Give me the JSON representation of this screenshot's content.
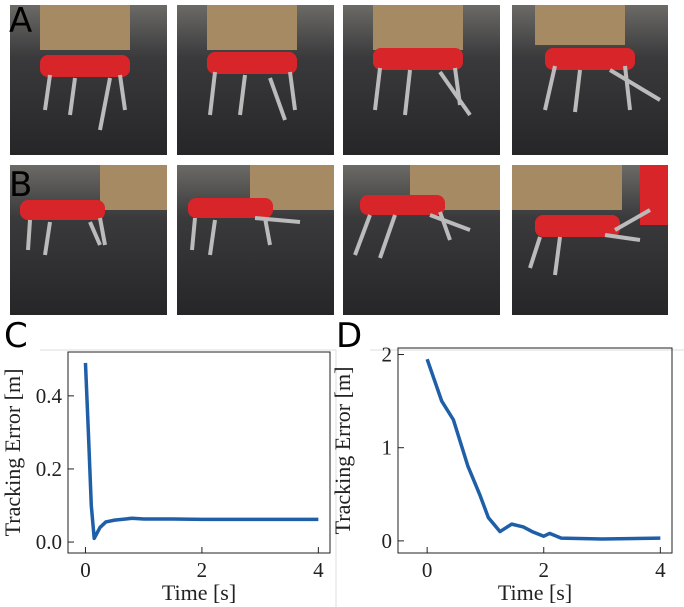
{
  "panel_labels": [
    "A",
    "B",
    "C",
    "D"
  ],
  "chart_data": [
    {
      "type": "line",
      "xlabel": "Time [s]",
      "ylabel": "Tracking Error [m]",
      "x": [
        0,
        0.05,
        0.1,
        0.15,
        0.25,
        0.35,
        0.5,
        0.8,
        1.0,
        1.5,
        2.0,
        3.0,
        4.0
      ],
      "series": [
        {
          "color": "#1f5fa8",
          "values": [
            0.49,
            0.3,
            0.1,
            0.01,
            0.04,
            0.055,
            0.06,
            0.065,
            0.063,
            0.063,
            0.062,
            0.062,
            0.062
          ]
        }
      ],
      "xlim": [
        -0.3,
        4.2
      ],
      "ylim": [
        -0.03,
        0.52
      ],
      "xticks": [
        0,
        2,
        4
      ],
      "yticks": [
        {
          "value": 0,
          "label": "0.0"
        },
        0.2,
        0.4
      ]
    },
    {
      "type": "line",
      "xlabel": "Time [s]",
      "ylabel": "Tracking Error [m]",
      "x": [
        0,
        0.25,
        0.45,
        0.7,
        0.9,
        1.05,
        1.25,
        1.45,
        1.65,
        1.8,
        2.0,
        2.1,
        2.3,
        3.0,
        4.0
      ],
      "series": [
        {
          "color": "#1f5fa8",
          "values": [
            1.95,
            1.5,
            1.3,
            0.8,
            0.5,
            0.25,
            0.1,
            0.18,
            0.15,
            0.1,
            0.05,
            0.08,
            0.03,
            0.02,
            0.03
          ]
        }
      ],
      "xlim": [
        -0.5,
        4.2
      ],
      "ylim": [
        -0.13,
        2.07
      ],
      "xticks": [
        0,
        2,
        4
      ],
      "yticks": [
        0,
        1,
        2
      ]
    }
  ]
}
